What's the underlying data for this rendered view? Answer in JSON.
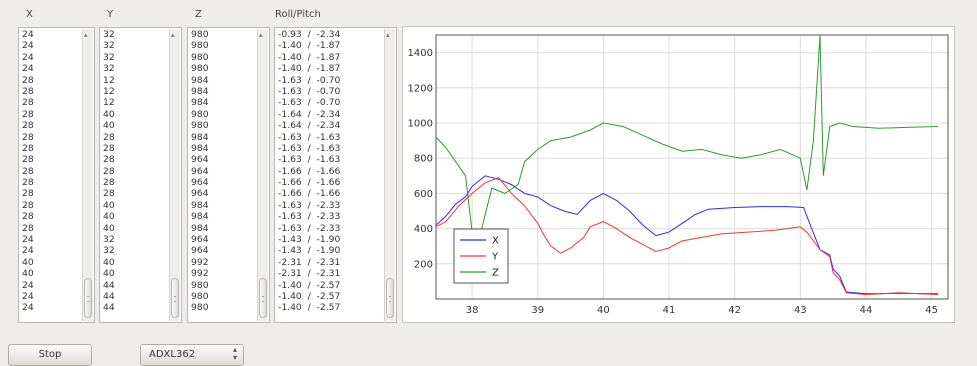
{
  "columns": {
    "x": {
      "label": "X",
      "values": [
        "24",
        "24",
        "24",
        "24",
        "28",
        "28",
        "28",
        "28",
        "28",
        "28",
        "28",
        "28",
        "28",
        "28",
        "28",
        "28",
        "28",
        "28",
        "24",
        "24",
        "40",
        "40",
        "24",
        "24",
        "24"
      ]
    },
    "y": {
      "label": "Y",
      "values": [
        "32",
        "32",
        "32",
        "32",
        "12",
        "12",
        "12",
        "40",
        "40",
        "28",
        "28",
        "28",
        "28",
        "28",
        "28",
        "40",
        "40",
        "40",
        "32",
        "32",
        "40",
        "40",
        "44",
        "44",
        "44"
      ]
    },
    "z": {
      "label": "Z",
      "values": [
        "980",
        "980",
        "980",
        "980",
        "984",
        "984",
        "984",
        "980",
        "980",
        "984",
        "984",
        "964",
        "964",
        "964",
        "964",
        "984",
        "984",
        "984",
        "964",
        "964",
        "992",
        "992",
        "980",
        "980",
        "980"
      ]
    },
    "roll_pitch": {
      "label": "Roll/Pitch",
      "values": [
        "-0.93  /  -2.34",
        "-1.40  /  -1.87",
        "-1.40  /  -1.87",
        "-1.40  /  -1.87",
        "-1.63  /  -0.70",
        "-1.63  /  -0.70",
        "-1.63  /  -0.70",
        "-1.64  /  -2.34",
        "-1.64  /  -2.34",
        "-1.63  /  -1.63",
        "-1.63  /  -1.63",
        "-1.63  /  -1.63",
        "-1.66  /  -1.66",
        "-1.66  /  -1.66",
        "-1.66  /  -1.66",
        "-1.63  /  -2.33",
        "-1.63  /  -2.33",
        "-1.63  /  -2.33",
        "-1.43  /  -1.90",
        "-1.43  /  -1.90",
        "-2.31  /  -2.31",
        "-2.31  /  -2.31",
        "-1.40  /  -2.57",
        "-1.40  /  -2.57",
        "-1.40  /  -2.57"
      ]
    }
  },
  "controls": {
    "stop_label": "Stop",
    "sensor_selected": "ADXL362"
  },
  "chart_data": {
    "type": "line",
    "xlim": [
      37.45,
      45.25
    ],
    "ylim": [
      0,
      1500
    ],
    "x_ticks": [
      "38",
      "39",
      "40",
      "41",
      "42",
      "43",
      "44",
      "45"
    ],
    "y_ticks": [
      "200",
      "400",
      "600",
      "800",
      "1000",
      "1200",
      "1400"
    ],
    "grid": true,
    "legend_position": "bottom-left",
    "series": [
      {
        "name": "X",
        "color": "#2a2aff",
        "points": [
          [
            37.45,
            420
          ],
          [
            37.6,
            470
          ],
          [
            37.75,
            540
          ],
          [
            37.9,
            580
          ],
          [
            38.0,
            640
          ],
          [
            38.2,
            700
          ],
          [
            38.4,
            680
          ],
          [
            38.6,
            650
          ],
          [
            38.8,
            600
          ],
          [
            39.0,
            580
          ],
          [
            39.2,
            530
          ],
          [
            39.4,
            500
          ],
          [
            39.6,
            480
          ],
          [
            39.8,
            560
          ],
          [
            40.0,
            600
          ],
          [
            40.2,
            560
          ],
          [
            40.4,
            500
          ],
          [
            40.6,
            420
          ],
          [
            40.8,
            360
          ],
          [
            41.0,
            380
          ],
          [
            41.2,
            430
          ],
          [
            41.4,
            480
          ],
          [
            41.6,
            510
          ],
          [
            41.8,
            515
          ],
          [
            42.0,
            520
          ],
          [
            42.4,
            525
          ],
          [
            42.8,
            525
          ],
          [
            43.05,
            520
          ],
          [
            43.1,
            470
          ],
          [
            43.3,
            280
          ],
          [
            43.45,
            250
          ],
          [
            43.5,
            170
          ],
          [
            43.6,
            130
          ],
          [
            43.7,
            40
          ],
          [
            44.0,
            30
          ],
          [
            44.5,
            32
          ],
          [
            45.1,
            30
          ]
        ]
      },
      {
        "name": "Y",
        "color": "#ee3a3a",
        "points": [
          [
            37.45,
            410
          ],
          [
            37.6,
            440
          ],
          [
            37.8,
            530
          ],
          [
            38.0,
            600
          ],
          [
            38.2,
            660
          ],
          [
            38.4,
            690
          ],
          [
            38.6,
            600
          ],
          [
            38.8,
            530
          ],
          [
            39.0,
            430
          ],
          [
            39.1,
            360
          ],
          [
            39.2,
            300
          ],
          [
            39.35,
            260
          ],
          [
            39.5,
            290
          ],
          [
            39.7,
            350
          ],
          [
            39.8,
            410
          ],
          [
            40.0,
            440
          ],
          [
            40.2,
            400
          ],
          [
            40.4,
            350
          ],
          [
            40.6,
            310
          ],
          [
            40.8,
            270
          ],
          [
            41.0,
            290
          ],
          [
            41.2,
            330
          ],
          [
            41.5,
            350
          ],
          [
            41.8,
            370
          ],
          [
            42.2,
            380
          ],
          [
            42.6,
            390
          ],
          [
            43.0,
            410
          ],
          [
            43.1,
            380
          ],
          [
            43.3,
            280
          ],
          [
            43.45,
            240
          ],
          [
            43.5,
            150
          ],
          [
            43.6,
            110
          ],
          [
            43.7,
            35
          ],
          [
            44.0,
            25
          ],
          [
            44.5,
            35
          ],
          [
            45.1,
            25
          ]
        ]
      },
      {
        "name": "Z",
        "color": "#2f9a2f",
        "points": [
          [
            37.45,
            920
          ],
          [
            37.6,
            860
          ],
          [
            37.75,
            780
          ],
          [
            37.9,
            700
          ],
          [
            38.0,
            380
          ],
          [
            38.1,
            330
          ],
          [
            38.3,
            630
          ],
          [
            38.5,
            600
          ],
          [
            38.7,
            650
          ],
          [
            38.8,
            780
          ],
          [
            39.0,
            850
          ],
          [
            39.2,
            900
          ],
          [
            39.5,
            920
          ],
          [
            39.8,
            960
          ],
          [
            40.0,
            1000
          ],
          [
            40.3,
            980
          ],
          [
            40.6,
            930
          ],
          [
            40.9,
            880
          ],
          [
            41.2,
            840
          ],
          [
            41.5,
            850
          ],
          [
            41.8,
            820
          ],
          [
            42.1,
            800
          ],
          [
            42.4,
            820
          ],
          [
            42.7,
            850
          ],
          [
            43.0,
            800
          ],
          [
            43.1,
            620
          ],
          [
            43.2,
            900
          ],
          [
            43.3,
            1500
          ],
          [
            43.35,
            700
          ],
          [
            43.45,
            980
          ],
          [
            43.6,
            1000
          ],
          [
            43.8,
            980
          ],
          [
            44.2,
            970
          ],
          [
            44.6,
            975
          ],
          [
            45.1,
            980
          ]
        ]
      }
    ]
  }
}
